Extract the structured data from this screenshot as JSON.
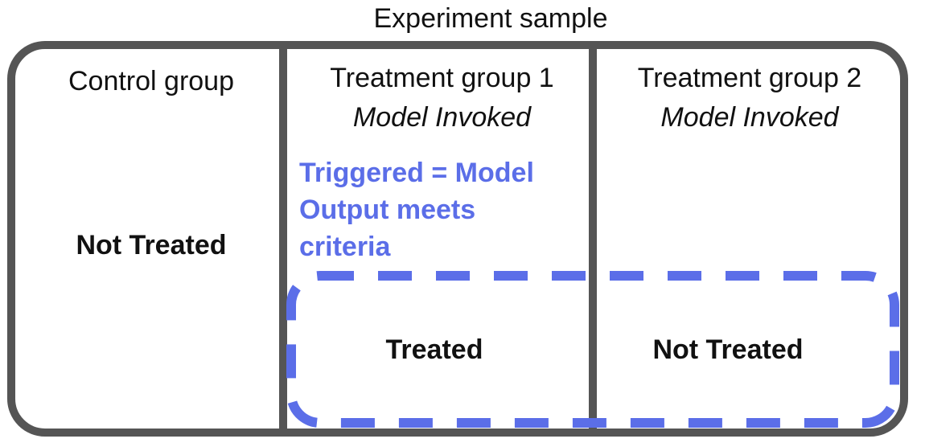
{
  "title": "Experiment sample",
  "columns": [
    {
      "title": "Control group",
      "subtitle": "",
      "outcome": "Not Treated"
    },
    {
      "title": "Treatment group 1",
      "subtitle": "Model Invoked",
      "outcome": "Treated"
    },
    {
      "title": "Treatment group 2",
      "subtitle": "Model Invoked",
      "outcome": "Not Treated"
    }
  ],
  "trigger_note": {
    "lines": [
      "Triggered = Model",
      "Output meets",
      "criteria"
    ]
  },
  "colors": {
    "border": "#555555",
    "accent": "#5b6ee8",
    "text": "#111111"
  }
}
